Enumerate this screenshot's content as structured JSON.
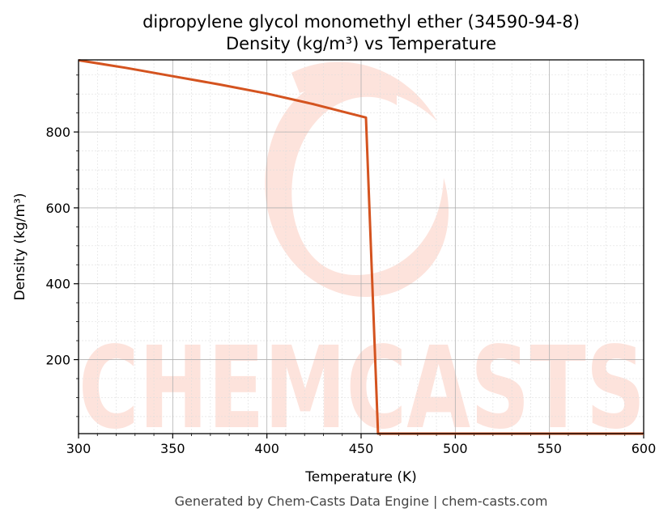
{
  "title_line1": "dipropylene glycol monomethyl ether (34590-94-8)",
  "title_line2": "Density (kg/m³) vs Temperature",
  "footer": "Generated by Chem-Casts Data Engine | chem-casts.com",
  "watermark": "CHEMCASTS",
  "colors": {
    "line": "#d4531f",
    "watermark": "#fde3dc",
    "grid_major": "#b0b0b0",
    "grid_minor": "#dddddd"
  },
  "chart_data": {
    "type": "line",
    "title": "dipropylene glycol monomethyl ether (34590-94-8)\nDensity (kg/m³) vs Temperature",
    "xlabel": "Temperature (K)",
    "ylabel": "Density (kg/m³)",
    "xlim": [
      300,
      600
    ],
    "ylim": [
      5,
      990
    ],
    "xticks": [
      300,
      350,
      400,
      450,
      500,
      550,
      600
    ],
    "yticks": [
      200,
      400,
      600,
      800
    ],
    "grid": true,
    "series": [
      {
        "x": [
          300,
          325,
          350,
          375,
          400,
          425,
          452.6,
          459,
          600
        ],
        "y": [
          989,
          969,
          947,
          925,
          901,
          873,
          838,
          5,
          5
        ]
      }
    ]
  }
}
